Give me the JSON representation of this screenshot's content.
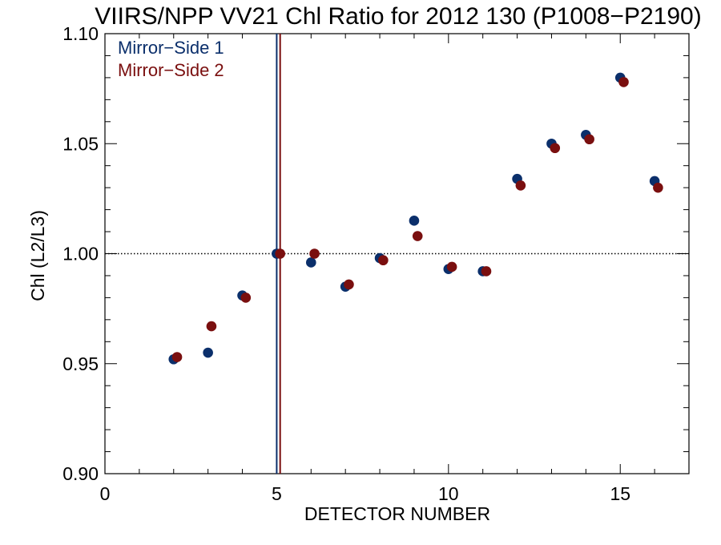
{
  "chart_data": {
    "type": "scatter",
    "title": "VIIRS/NPP VV21 Chl Ratio for 2012 130 (P1008−P2190)",
    "xlabel": "DETECTOR NUMBER",
    "ylabel": "Chl (L2/L3)",
    "xlim": [
      0,
      17
    ],
    "ylim": [
      0.9,
      1.1
    ],
    "xticks": [
      0,
      5,
      10,
      15
    ],
    "xtick_labels": [
      "0",
      "5",
      "10",
      "15"
    ],
    "yticks": [
      0.9,
      0.95,
      1.0,
      1.05,
      1.1
    ],
    "ytick_labels": [
      "0.90",
      "0.95",
      "1.00",
      "1.05",
      "1.10"
    ],
    "x_minor_step": 1,
    "y_minor_step": 0.01,
    "grid": false,
    "legend_position": "top-left",
    "reference_line": {
      "y": 1.0,
      "style": "dotted",
      "color": "#000000"
    },
    "vertical_lines": [
      {
        "x": 5.0,
        "color": "#0B2F6B"
      },
      {
        "x": 5.1,
        "color": "#7A0F0F"
      }
    ],
    "series": [
      {
        "name": "Mirror−Side 1",
        "color": "#0B2F6B",
        "x": [
          2,
          3,
          4,
          5,
          6,
          7,
          8,
          9,
          10,
          11,
          12,
          13,
          14,
          15,
          16
        ],
        "y": [
          0.952,
          0.955,
          0.981,
          1.0,
          0.996,
          0.985,
          0.998,
          1.015,
          0.993,
          0.992,
          1.034,
          1.05,
          1.054,
          1.08,
          1.033
        ]
      },
      {
        "name": "Mirror−Side 2",
        "color": "#7A0F0F",
        "x": [
          2.1,
          3.1,
          4.1,
          5.1,
          6.1,
          7.1,
          8.1,
          9.1,
          10.1,
          11.1,
          12.1,
          13.1,
          14.1,
          15.1,
          16.1
        ],
        "y": [
          0.953,
          0.967,
          0.98,
          1.0,
          1.0,
          0.986,
          0.997,
          1.008,
          0.994,
          0.992,
          1.031,
          1.048,
          1.052,
          1.078,
          1.03
        ]
      }
    ]
  }
}
